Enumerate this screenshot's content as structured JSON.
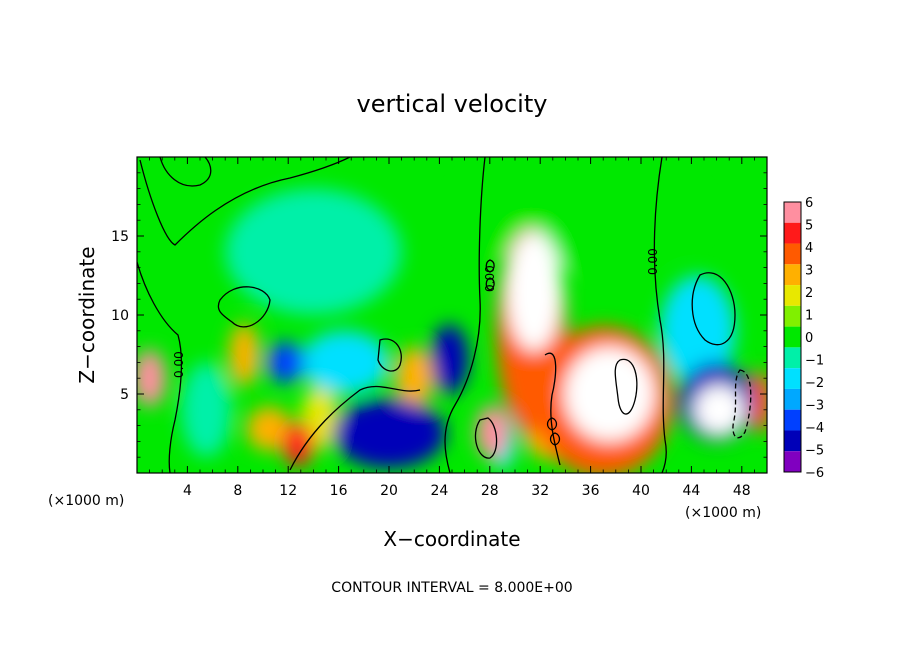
{
  "chart_data": {
    "type": "heatmap",
    "title": "vertical velocity",
    "xlabel": "X−coordinate",
    "ylabel": "Z−coordinate",
    "x_unit": "(×1000 m)",
    "z_unit": "(×1000 m)",
    "xlim": [
      0,
      50
    ],
    "ylim": [
      0,
      20
    ],
    "x_ticks": [
      4,
      8,
      12,
      16,
      20,
      24,
      28,
      32,
      36,
      40,
      44,
      48
    ],
    "x_tick_labels": [
      "4",
      "8",
      "12",
      "16",
      "20",
      "24",
      "28",
      "32",
      "36",
      "40",
      "44",
      "48"
    ],
    "y_ticks": [
      5,
      10,
      15
    ],
    "y_tick_labels": [
      "5",
      "10",
      "15"
    ],
    "colorbar": {
      "levels": [
        6,
        5,
        4,
        3,
        2,
        1,
        0,
        -1,
        -2,
        -3,
        -4,
        -5,
        -6
      ],
      "labels": [
        "6",
        "5",
        "4",
        "3",
        "2",
        "1",
        "0",
        "−1",
        "−2",
        "−3",
        "−4",
        "−5",
        "−6"
      ],
      "colors": [
        "#ff8fa0",
        "#ff1a1a",
        "#ff5a00",
        "#ffb000",
        "#e8e800",
        "#80f000",
        "#00e800",
        "#00f0a8",
        "#00e0ff",
        "#00a8ff",
        "#0040ff",
        "#0000b8",
        "#8000c0"
      ]
    },
    "contour_labels": [
      "0.00",
      "0.00",
      "0.00"
    ],
    "contour_interval_text": "CONTOUR INTERVAL = 8.000E+00",
    "features": [
      {
        "x": 31.5,
        "z": 11.5,
        "value": 6.5,
        "rx": 2.2,
        "rz": 3.8
      },
      {
        "x": 31.3,
        "z": 9.0,
        "value": 4.0,
        "rx": 2.8,
        "rz": 6.5
      },
      {
        "x": 37.5,
        "z": 5.0,
        "value": 6.5,
        "rx": 3.6,
        "rz": 3.0
      },
      {
        "x": 37.0,
        "z": 4.5,
        "value": 3.5,
        "rx": 5.5,
        "rz": 4.8
      },
      {
        "x": 33.0,
        "z": 3.0,
        "value": 3.0,
        "rx": 2.5,
        "rz": 2.2
      },
      {
        "x": 28.2,
        "z": 2.6,
        "value": 5.5,
        "rx": 1.3,
        "rz": 1.7
      },
      {
        "x": 1.0,
        "z": 6.0,
        "value": 6.0,
        "rx": 1.3,
        "rz": 1.8
      },
      {
        "x": 12.8,
        "z": 1.8,
        "value": 4.5,
        "rx": 1.3,
        "rz": 1.4
      },
      {
        "x": 10.5,
        "z": 2.8,
        "value": 3.0,
        "rx": 1.8,
        "rz": 1.4
      },
      {
        "x": 14.5,
        "z": 3.5,
        "value": 2.0,
        "rx": 1.5,
        "rz": 2.0
      },
      {
        "x": 8.5,
        "z": 7.5,
        "value": 3.0,
        "rx": 1.2,
        "rz": 2.0
      },
      {
        "x": 22.0,
        "z": 6.0,
        "value": 2.5,
        "rx": 1.5,
        "rz": 2.0
      },
      {
        "x": 49.5,
        "z": 4.5,
        "value": 4.0,
        "rx": 1.0,
        "rz": 2.0
      },
      {
        "x": 20.0,
        "z": 2.5,
        "value": -5.0,
        "rx": 4.5,
        "rz": 2.2
      },
      {
        "x": 24.8,
        "z": 7.2,
        "value": -5.0,
        "rx": 1.5,
        "rz": 2.2
      },
      {
        "x": 46.0,
        "z": 4.5,
        "value": -5.5,
        "rx": 3.0,
        "rz": 2.5
      },
      {
        "x": 46.2,
        "z": 4.0,
        "value": -6.5,
        "rx": 2.0,
        "rz": 1.6
      },
      {
        "x": 11.8,
        "z": 7.0,
        "value": -4.0,
        "rx": 1.5,
        "rz": 1.3
      },
      {
        "x": 16.5,
        "z": 7.0,
        "value": -2.0,
        "rx": 3.5,
        "rz": 2.0
      },
      {
        "x": 5.5,
        "z": 4.0,
        "value": -1.5,
        "rx": 2.0,
        "rz": 3.0
      },
      {
        "x": 44.5,
        "z": 9.0,
        "value": -2.0,
        "rx": 3.0,
        "rz": 3.5
      },
      {
        "x": 29.0,
        "z": 2.0,
        "value": -2.5,
        "rx": 1.0,
        "rz": 1.8
      },
      {
        "x": 14.0,
        "z": 14.0,
        "value": -1.0,
        "rx": 7.0,
        "rz": 4.0
      },
      {
        "x": 35.0,
        "z": 16.5,
        "value": -0.5,
        "rx": 10.0,
        "rz": 3.5
      }
    ]
  },
  "colors": {
    "background": "#ffffff",
    "frame": "#000000"
  }
}
